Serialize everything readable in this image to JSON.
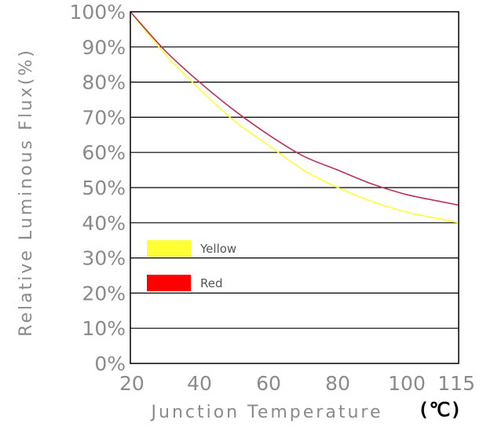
{
  "chart_data": {
    "type": "line",
    "xlabel": "Junction Temperature",
    "xunit": "(℃)",
    "ylabel": "Relative Luminous Flux(%)",
    "x_ticks": [
      "20",
      "40",
      "60",
      "80",
      "100",
      "115"
    ],
    "y_ticks": [
      "0%",
      "10%",
      "20%",
      "30%",
      "40%",
      "50%",
      "60%",
      "70%",
      "80%",
      "90%",
      "100%"
    ],
    "xlim": [
      20,
      115
    ],
    "ylim": [
      0,
      100
    ],
    "grid": "horizontal",
    "legend_position": "left-middle",
    "series": [
      {
        "name": "Yellow",
        "color": "#ffff33",
        "x": [
          20,
          30,
          40,
          50,
          60,
          70,
          80,
          90,
          100,
          110,
          115
        ],
        "y": [
          100,
          88,
          78,
          69,
          62,
          55,
          50,
          46,
          43,
          41,
          40
        ]
      },
      {
        "name": "Red",
        "color": "#ff0000",
        "line_color": "#b8325a",
        "x": [
          20,
          30,
          40,
          50,
          60,
          70,
          80,
          90,
          100,
          110,
          115
        ],
        "y": [
          100,
          89,
          80,
          72,
          65,
          59,
          55,
          51,
          48,
          46,
          45
        ]
      }
    ]
  }
}
